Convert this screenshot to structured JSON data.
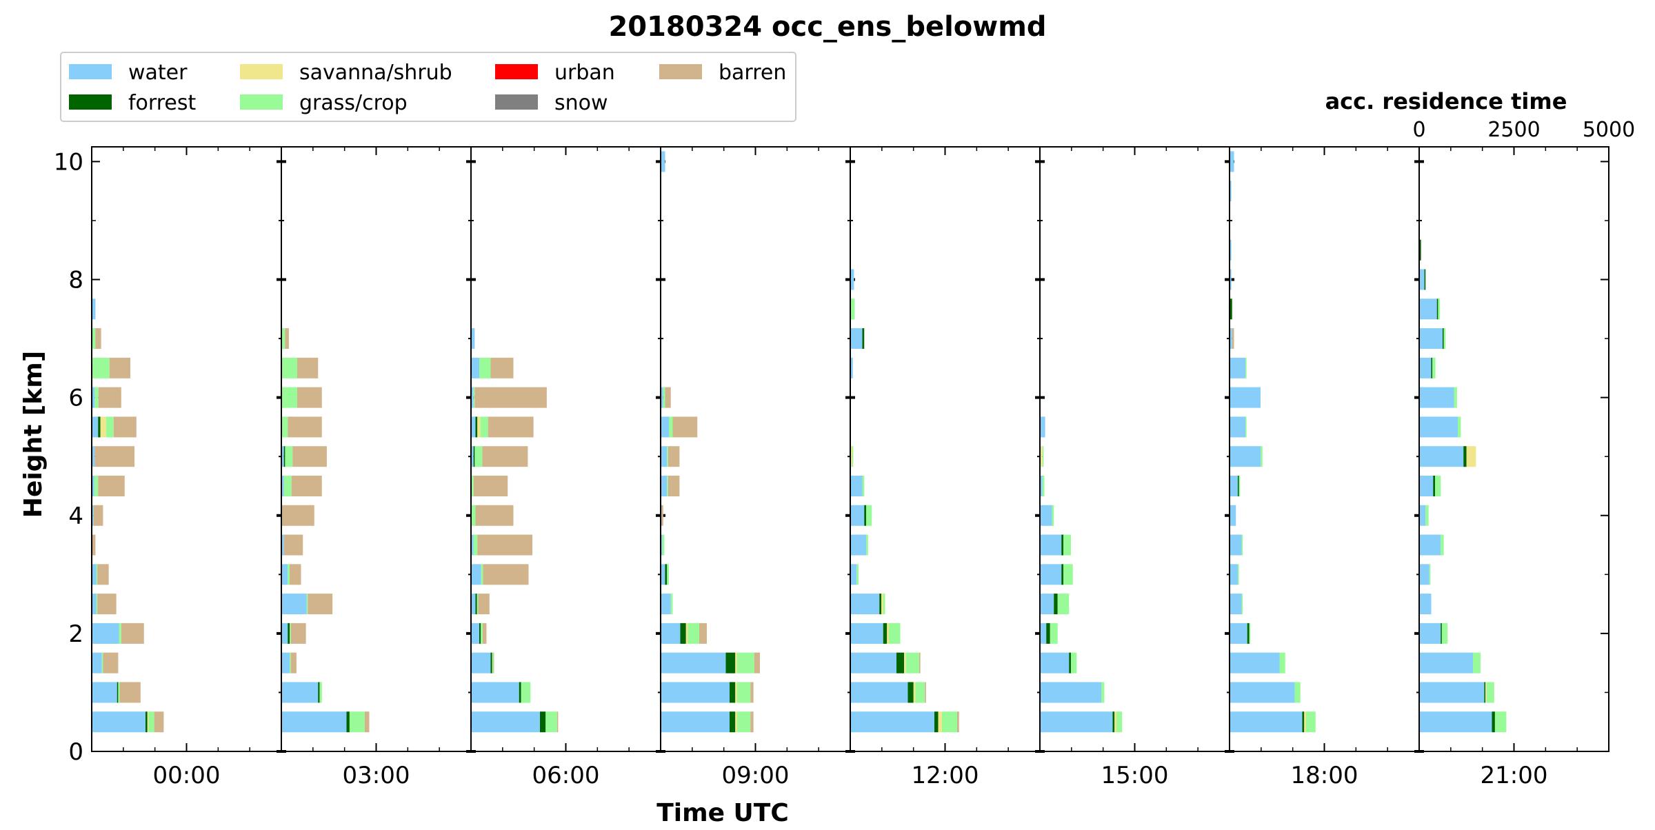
{
  "chart_data": {
    "type": "bar",
    "orientation": "horizontal-stacked-small-multiples",
    "title": "20180324 occ_ens_belowmd",
    "xlabel": "Time UTC",
    "ylabel": "Height [km]",
    "top_axis_label": "acc. residence time",
    "top_axis_ticks": [
      "0",
      "2500",
      "5000"
    ],
    "residence_time_range": [
      0,
      5000
    ],
    "ylim": [
      0,
      10.25
    ],
    "y_ticks": [
      "0",
      "2",
      "4",
      "6",
      "8",
      "10"
    ],
    "time_ticks": [
      "00:00",
      "03:00",
      "06:00",
      "09:00",
      "12:00",
      "15:00",
      "18:00",
      "21:00"
    ],
    "legend_placement": "top-left",
    "categories": [
      {
        "name": "water",
        "color": "#87CEFA"
      },
      {
        "name": "forrest",
        "color": "#006400"
      },
      {
        "name": "savanna/shrub",
        "color": "#F0E68C"
      },
      {
        "name": "grass/crop",
        "color": "#98FB98"
      },
      {
        "name": "urban",
        "color": "#FF0000"
      },
      {
        "name": "snow",
        "color": "#808080"
      },
      {
        "name": "barren",
        "color": "#D2B48C"
      }
    ],
    "heights_km": [
      0.5,
      1.0,
      1.5,
      2.0,
      2.5,
      3.0,
      3.5,
      4.0,
      4.5,
      5.0,
      5.5,
      6.0,
      6.5,
      7.0,
      7.5,
      8.0,
      8.5,
      9.0,
      9.5,
      10.0
    ],
    "panels": [
      {
        "time": "00:00",
        "bars": [
          {
            "h": 0.5,
            "w": 1400,
            "f": 50,
            "s": 30,
            "g": 150,
            "b": 250
          },
          {
            "h": 1.0,
            "w": 650,
            "f": 30,
            "g": 40,
            "b": 550
          },
          {
            "h": 1.5,
            "w": 250,
            "g": 30,
            "b": 400
          },
          {
            "h": 2.0,
            "w": 700,
            "g": 60,
            "b": 600
          },
          {
            "h": 2.5,
            "w": 100,
            "g": 30,
            "b": 500
          },
          {
            "h": 3.0,
            "w": 100,
            "g": 30,
            "b": 300
          },
          {
            "h": 3.5,
            "b": 80
          },
          {
            "h": 4.0,
            "w": 30,
            "b": 250
          },
          {
            "h": 4.5,
            "w": 50,
            "g": 100,
            "b": 700
          },
          {
            "h": 5.0,
            "w": 60,
            "b": 1050
          },
          {
            "h": 5.5,
            "w": 150,
            "f": 60,
            "s": 150,
            "g": 200,
            "b": 600
          },
          {
            "h": 6.0,
            "w": 60,
            "g": 100,
            "b": 600
          },
          {
            "h": 6.5,
            "g": 450,
            "b": 550
          },
          {
            "h": 7.0,
            "g": 80,
            "b": 150
          },
          {
            "h": 7.5,
            "w": 80
          }
        ]
      },
      {
        "time": "03:00",
        "bars": [
          {
            "h": 0.5,
            "w": 1700,
            "f": 80,
            "g": 400,
            "b": 120
          },
          {
            "h": 1.0,
            "w": 950,
            "f": 40,
            "g": 60
          },
          {
            "h": 1.5,
            "w": 200,
            "g": 30,
            "b": 150
          },
          {
            "h": 2.0,
            "w": 150,
            "f": 50,
            "g": 30,
            "b": 400
          },
          {
            "h": 2.5,
            "w": 650,
            "g": 30,
            "b": 650
          },
          {
            "h": 3.0,
            "w": 150,
            "g": 50,
            "b": 300
          },
          {
            "h": 3.5,
            "w": 50,
            "b": 500
          },
          {
            "h": 4.0,
            "b": 850
          },
          {
            "h": 4.5,
            "w": 50,
            "g": 200,
            "b": 800
          },
          {
            "h": 5.0,
            "w": 50,
            "f": 30,
            "g": 200,
            "b": 900
          },
          {
            "h": 5.5,
            "g": 150,
            "b": 900
          },
          {
            "h": 6.0,
            "g": 400,
            "b": 650
          },
          {
            "h": 6.5,
            "g": 400,
            "b": 550
          },
          {
            "h": 7.0,
            "g": 80,
            "b": 100
          }
        ]
      },
      {
        "time": "06:00",
        "bars": [
          {
            "h": 0.5,
            "w": 1800,
            "f": 150,
            "g": 300,
            "b": 30
          },
          {
            "h": 1.0,
            "w": 1250,
            "f": 50,
            "g": 250
          },
          {
            "h": 1.5,
            "w": 500,
            "f": 40,
            "g": 30,
            "b": 20
          },
          {
            "h": 2.0,
            "w": 200,
            "f": 40,
            "g": 50,
            "b": 100
          },
          {
            "h": 2.5,
            "w": 100,
            "f": 40,
            "g": 30,
            "b": 300
          },
          {
            "h": 3.0,
            "w": 250,
            "g": 50,
            "b": 1200
          },
          {
            "h": 3.5,
            "w": 50,
            "g": 100,
            "b": 1450
          },
          {
            "h": 4.0,
            "g": 100,
            "b": 1000
          },
          {
            "h": 4.5,
            "g": 50,
            "b": 900
          },
          {
            "h": 5.0,
            "w": 50,
            "f": 30,
            "g": 200,
            "b": 1200
          },
          {
            "h": 5.5,
            "w": 100,
            "f": 50,
            "s": 80,
            "g": 200,
            "b": 1200
          },
          {
            "h": 6.0,
            "w": 50,
            "g": 30,
            "b": 1900
          },
          {
            "h": 6.5,
            "w": 200,
            "g": 300,
            "b": 600
          },
          {
            "h": 7.0,
            "w": 80
          }
        ]
      },
      {
        "time": "09:00",
        "bars": [
          {
            "h": 0.5,
            "w": 1800,
            "f": 150,
            "s": 50,
            "g": 350,
            "b": 80
          },
          {
            "h": 1.0,
            "w": 1800,
            "f": 150,
            "s": 50,
            "g": 350,
            "b": 80
          },
          {
            "h": 1.5,
            "w": 1700,
            "f": 250,
            "s": 50,
            "g": 450,
            "b": 150
          },
          {
            "h": 2.0,
            "w": 500,
            "f": 150,
            "s": 50,
            "g": 300,
            "b": 200
          },
          {
            "h": 2.5,
            "w": 250,
            "g": 50
          },
          {
            "h": 3.0,
            "w": 100,
            "f": 50,
            "g": 50
          },
          {
            "h": 3.5,
            "w": 30,
            "g": 50
          },
          {
            "h": 4.0,
            "b": 50
          },
          {
            "h": 4.5,
            "w": 150,
            "g": 30,
            "b": 300
          },
          {
            "h": 5.0,
            "w": 150,
            "g": 30,
            "b": 300
          },
          {
            "h": 5.5,
            "w": 200,
            "g": 100,
            "b": 650
          },
          {
            "h": 6.0,
            "w": 50,
            "g": 50,
            "b": 150
          },
          {
            "h": 10.0,
            "w": 100
          }
        ]
      },
      {
        "time": "12:00",
        "bars": [
          {
            "h": 0.5,
            "w": 2200,
            "f": 100,
            "s": 100,
            "g": 400,
            "b": 50
          },
          {
            "h": 1.0,
            "w": 1500,
            "f": 150,
            "s": 50,
            "g": 250,
            "b": 30
          },
          {
            "h": 1.5,
            "w": 1200,
            "f": 200,
            "s": 50,
            "g": 350,
            "b": 30
          },
          {
            "h": 2.0,
            "w": 850,
            "f": 100,
            "s": 50,
            "g": 300
          },
          {
            "h": 2.5,
            "w": 750,
            "f": 50,
            "s": 50,
            "g": 50
          },
          {
            "h": 3.0,
            "w": 150,
            "g": 50
          },
          {
            "h": 3.5,
            "w": 400,
            "g": 50
          },
          {
            "h": 4.0,
            "w": 350,
            "f": 50,
            "g": 150
          },
          {
            "h": 4.5,
            "w": 300,
            "g": 50
          },
          {
            "h": 5.0,
            "s": 30,
            "g": 30
          },
          {
            "h": 6.5,
            "w": 50
          },
          {
            "h": 7.0,
            "w": 300,
            "f": 50
          },
          {
            "h": 7.5,
            "g": 100
          },
          {
            "h": 8.0,
            "w": 80
          }
        ]
      },
      {
        "time": "15:00",
        "bars": [
          {
            "h": 0.5,
            "w": 1900,
            "f": 50,
            "s": 50,
            "g": 150
          },
          {
            "h": 1.0,
            "w": 1600,
            "g": 80
          },
          {
            "h": 1.5,
            "w": 750,
            "f": 50,
            "g": 150
          },
          {
            "h": 2.0,
            "w": 150,
            "f": 100,
            "g": 200
          },
          {
            "h": 2.5,
            "w": 350,
            "f": 100,
            "g": 300
          },
          {
            "h": 3.0,
            "w": 550,
            "f": 50,
            "g": 250
          },
          {
            "h": 3.5,
            "w": 550,
            "f": 50,
            "g": 200
          },
          {
            "h": 4.0,
            "w": 300,
            "g": 50
          },
          {
            "h": 4.5,
            "w": 50,
            "g": 50
          },
          {
            "h": 5.0,
            "s": 50,
            "g": 30
          },
          {
            "h": 5.5,
            "w": 120
          }
        ]
      },
      {
        "time": "18:00",
        "bars": [
          {
            "h": 0.5,
            "w": 1900,
            "f": 50,
            "s": 50,
            "g": 250
          },
          {
            "h": 1.0,
            "w": 1700,
            "g": 150
          },
          {
            "h": 1.5,
            "w": 1300,
            "g": 150
          },
          {
            "h": 2.0,
            "w": 450,
            "f": 50,
            "g": 30
          },
          {
            "h": 2.5,
            "w": 300,
            "g": 30
          },
          {
            "h": 3.0,
            "w": 200,
            "g": 30
          },
          {
            "h": 3.5,
            "w": 300,
            "g": 30
          },
          {
            "h": 4.0,
            "w": 150
          },
          {
            "h": 4.5,
            "w": 200,
            "f": 30,
            "g": 30
          },
          {
            "h": 5.0,
            "w": 800,
            "g": 50
          },
          {
            "h": 5.5,
            "w": 400,
            "g": 30
          },
          {
            "h": 6.0,
            "w": 800
          },
          {
            "h": 6.5,
            "w": 400,
            "g": 30
          },
          {
            "h": 7.0,
            "w": 50,
            "b": 50
          },
          {
            "h": 7.5,
            "f": 50
          },
          {
            "h": 8.0,
            "w": 30
          },
          {
            "h": 8.5,
            "w": 30
          },
          {
            "h": 9.5,
            "w": 30
          },
          {
            "h": 10.0,
            "w": 100
          }
        ]
      },
      {
        "time": "21:00",
        "bars": [
          {
            "h": 0.5,
            "w": 1900,
            "f": 80,
            "g": 300
          },
          {
            "h": 1.0,
            "w": 1700,
            "f": 30,
            "s": 30,
            "g": 200
          },
          {
            "h": 1.5,
            "w": 1400,
            "g": 200
          },
          {
            "h": 2.0,
            "w": 550,
            "f": 30,
            "g": 150
          },
          {
            "h": 2.5,
            "w": 300
          },
          {
            "h": 3.0,
            "w": 250,
            "g": 30
          },
          {
            "h": 3.5,
            "w": 550,
            "g": 80
          },
          {
            "h": 4.0,
            "w": 150,
            "g": 80
          },
          {
            "h": 4.5,
            "w": 350,
            "f": 50,
            "g": 150
          },
          {
            "h": 5.0,
            "w": 1150,
            "f": 80,
            "s": 250
          },
          {
            "h": 5.5,
            "w": 1000,
            "g": 80
          },
          {
            "h": 6.0,
            "w": 900,
            "g": 80
          },
          {
            "h": 6.5,
            "w": 300,
            "f": 30,
            "g": 80
          },
          {
            "h": 7.0,
            "w": 600,
            "f": 30,
            "g": 50
          },
          {
            "h": 7.5,
            "w": 450,
            "f": 30,
            "g": 50
          },
          {
            "h": 8.0,
            "w": 120,
            "f": 30
          },
          {
            "h": 8.5,
            "f": 30
          }
        ]
      }
    ]
  }
}
